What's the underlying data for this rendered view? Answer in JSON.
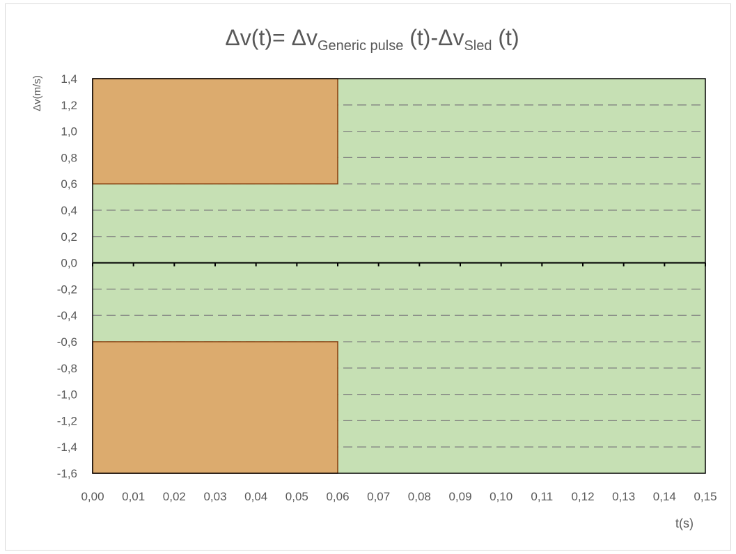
{
  "title": {
    "prefix": "Δv(t)= Δv",
    "sub1": "Generic pulse",
    "mid": " (t)-Δv",
    "sub2": "Sled",
    "suffix": " (t)"
  },
  "chart_data": {
    "type": "area",
    "xlabel": "t(s)",
    "ylabel": "Δv(m/s)",
    "xlim": [
      0.0,
      0.15
    ],
    "ylim": [
      -1.6,
      1.4
    ],
    "x_ticks": [
      "0,00",
      "0,01",
      "0,02",
      "0,03",
      "0,04",
      "0,05",
      "0,06",
      "0,07",
      "0,08",
      "0,09",
      "0,10",
      "0,11",
      "0,12",
      "0,13",
      "0,14",
      "0,15"
    ],
    "y_ticks": [
      "1,4",
      "1,2",
      "1,0",
      "0,8",
      "0,6",
      "0,4",
      "0,2",
      "0,0",
      "-0,2",
      "-0,4",
      "-0,6",
      "-0,8",
      "-1,0",
      "-1,2",
      "-1,4",
      "-1,6"
    ],
    "grid": "horizontal dashed",
    "regions": [
      {
        "x": [
          0.0,
          0.15
        ],
        "y": [
          -1.6,
          1.4
        ],
        "color": "#c6e0b4"
      },
      {
        "x": [
          0.0,
          0.06
        ],
        "y": [
          0.6,
          1.4
        ],
        "color": "#dcab6e"
      },
      {
        "x": [
          0.0,
          0.06
        ],
        "y": [
          -1.6,
          -0.6
        ],
        "color": "#dcab6e"
      }
    ]
  },
  "colors": {
    "plot_background": "#c6e0b4",
    "region_fill": "#dcab6e",
    "region_border": "#843c0c",
    "grid": "#7f7f7f",
    "axis": "#000000",
    "text": "#595959"
  }
}
